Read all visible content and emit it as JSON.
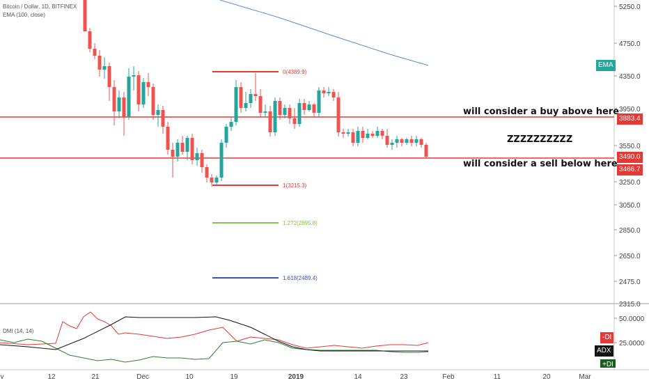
{
  "chart_data": {
    "type": "candlestick",
    "header": {
      "symbol": "Bitcoin / Dollar, 1D, BITFINEX",
      "indicator": "EMA (100, close)"
    },
    "y_ticks": [
      "5250.0",
      "4750.0",
      "4350.0",
      "3950.0",
      "3550.0",
      "3250.0",
      "3050.0",
      "2850.0",
      "2650.0",
      "2475.0",
      "2315.0"
    ],
    "x_ticks": [
      "v",
      "12",
      "21",
      "Dec",
      "10",
      "19",
      "2019",
      "14",
      "23",
      "Feb",
      "11",
      "20",
      "Mar"
    ],
    "ema_label": "EMA",
    "ema_line": [
      [
        316,
        0
      ],
      [
        400,
        25
      ],
      [
        480,
        52
      ],
      [
        560,
        78
      ],
      [
        615,
        94
      ]
    ],
    "hlines": [
      {
        "label": "3883.4",
        "y": 168,
        "color": "#e53935"
      },
      {
        "label": "3466.7",
        "y": 227,
        "color": "#e53935"
      }
    ],
    "price_badges": [
      {
        "label": "3883.4",
        "y": 170,
        "color": "#e53935"
      },
      {
        "label": "3490.0",
        "y": 225,
        "color": "#e53935"
      },
      {
        "label": "3466.7",
        "y": 243,
        "color": "#e53935"
      }
    ],
    "fib_levels": [
      {
        "label": "0(4389.9)",
        "y": 103,
        "color": "#e53935"
      },
      {
        "label": "1(3215.3)",
        "y": 266,
        "color": "#e53935"
      },
      {
        "label": "1.272(2895.8)",
        "y": 320,
        "color": "#8bc34a"
      },
      {
        "label": "1.618(2489.4)",
        "y": 399,
        "color": "#3f51b5"
      }
    ],
    "annotations": [
      {
        "text": "will consider a buy above here",
        "x": 665,
        "y": 153
      },
      {
        "text": "ZZZZZZZZZZ",
        "x": 728,
        "y": 193
      },
      {
        "text": "will consider a sell below here",
        "x": 665,
        "y": 228
      }
    ],
    "candles": [
      [
        122,
        0,
        45,
        0,
        45
      ],
      [
        129,
        45,
        70,
        40,
        75
      ],
      [
        136,
        70,
        80,
        62,
        85
      ],
      [
        143,
        80,
        100,
        72,
        110
      ],
      [
        150,
        100,
        95,
        82,
        113
      ],
      [
        157,
        95,
        125,
        90,
        145
      ],
      [
        164,
        125,
        160,
        115,
        180
      ],
      [
        171,
        160,
        140,
        130,
        170
      ],
      [
        178,
        140,
        168,
        132,
        195
      ],
      [
        185,
        168,
        110,
        98,
        172
      ],
      [
        192,
        110,
        108,
        95,
        130
      ],
      [
        199,
        108,
        150,
        102,
        160
      ],
      [
        206,
        150,
        118,
        112,
        155
      ],
      [
        213,
        118,
        125,
        105,
        138
      ],
      [
        220,
        125,
        165,
        120,
        172
      ],
      [
        227,
        165,
        158,
        150,
        182
      ],
      [
        234,
        158,
        182,
        152,
        192
      ],
      [
        241,
        182,
        215,
        175,
        222
      ],
      [
        248,
        215,
        225,
        205,
        255
      ],
      [
        255,
        225,
        205,
        200,
        232
      ],
      [
        262,
        205,
        218,
        195,
        222
      ],
      [
        269,
        218,
        198,
        195,
        230
      ],
      [
        276,
        198,
        230,
        192,
        236
      ],
      [
        283,
        230,
        220,
        212,
        238
      ],
      [
        290,
        220,
        240,
        215,
        248
      ],
      [
        297,
        240,
        255,
        236,
        262
      ],
      [
        304,
        255,
        262,
        250,
        268
      ],
      [
        311,
        262,
        255,
        252,
        266
      ],
      [
        318,
        255,
        205,
        200,
        260
      ],
      [
        325,
        205,
        182,
        178,
        212
      ],
      [
        332,
        182,
        175,
        168,
        188
      ],
      [
        339,
        175,
        125,
        115,
        180
      ],
      [
        346,
        125,
        155,
        118,
        162
      ],
      [
        353,
        155,
        148,
        132,
        160
      ],
      [
        360,
        148,
        135,
        128,
        155
      ],
      [
        367,
        135,
        138,
        105,
        145
      ],
      [
        374,
        138,
        162,
        128,
        168
      ],
      [
        381,
        162,
        160,
        150,
        168
      ],
      [
        388,
        160,
        190,
        152,
        196
      ],
      [
        395,
        190,
        145,
        140,
        195
      ],
      [
        402,
        145,
        165,
        140,
        172
      ],
      [
        409,
        165,
        155,
        150,
        170
      ],
      [
        416,
        155,
        170,
        150,
        178
      ],
      [
        423,
        170,
        178,
        155,
        185
      ],
      [
        430,
        178,
        148,
        142,
        182
      ],
      [
        437,
        148,
        158,
        142,
        165
      ],
      [
        444,
        158,
        150,
        145,
        160
      ],
      [
        451,
        150,
        162,
        148,
        168
      ],
      [
        458,
        162,
        130,
        125,
        168
      ],
      [
        465,
        130,
        134,
        125,
        140
      ],
      [
        472,
        134,
        132,
        125,
        138
      ],
      [
        479,
        132,
        140,
        128,
        145
      ],
      [
        486,
        140,
        190,
        132,
        196
      ],
      [
        493,
        190,
        192,
        185,
        198
      ],
      [
        500,
        192,
        190,
        185,
        196
      ],
      [
        507,
        190,
        205,
        185,
        210
      ],
      [
        514,
        205,
        188,
        182,
        210
      ],
      [
        521,
        188,
        198,
        182,
        205
      ],
      [
        528,
        198,
        192,
        185,
        200
      ],
      [
        535,
        192,
        195,
        188,
        198
      ],
      [
        542,
        195,
        188,
        182,
        198
      ],
      [
        549,
        188,
        195,
        185,
        200
      ],
      [
        556,
        195,
        208,
        185,
        212
      ],
      [
        563,
        208,
        205,
        200,
        215
      ],
      [
        570,
        205,
        200,
        195,
        212
      ],
      [
        577,
        200,
        205,
        198,
        210
      ],
      [
        584,
        205,
        200,
        198,
        208
      ],
      [
        591,
        200,
        205,
        195,
        210
      ],
      [
        598,
        205,
        200,
        195,
        210
      ],
      [
        605,
        200,
        208,
        198,
        212
      ],
      [
        612,
        208,
        225,
        205,
        228
      ]
    ],
    "dmi": {
      "label": "DMI (14, 14)",
      "y_ticks": [
        "50.0000",
        "25.0000"
      ],
      "badges": [
        "-DI",
        "ADX",
        "+DI"
      ],
      "minus_di": [
        [
          0,
          492
        ],
        [
          40,
          495
        ],
        [
          80,
          493
        ],
        [
          90,
          462
        ],
        [
          100,
          468
        ],
        [
          110,
          472
        ],
        [
          120,
          455
        ],
        [
          130,
          448
        ],
        [
          140,
          458
        ],
        [
          150,
          462
        ],
        [
          160,
          468
        ],
        [
          170,
          480
        ],
        [
          180,
          478
        ],
        [
          200,
          480
        ],
        [
          220,
          483
        ],
        [
          240,
          486
        ],
        [
          260,
          484
        ],
        [
          280,
          480
        ],
        [
          300,
          474
        ],
        [
          320,
          470
        ],
        [
          340,
          490
        ],
        [
          360,
          484
        ],
        [
          380,
          486
        ],
        [
          400,
          488
        ],
        [
          420,
          495
        ],
        [
          440,
          500
        ],
        [
          460,
          498
        ],
        [
          480,
          496
        ],
        [
          500,
          498
        ],
        [
          520,
          500
        ],
        [
          540,
          497
        ],
        [
          560,
          495
        ],
        [
          580,
          495
        ],
        [
          600,
          496
        ],
        [
          615,
          492
        ]
      ],
      "plus_di": [
        [
          0,
          488
        ],
        [
          20,
          492
        ],
        [
          40,
          487
        ],
        [
          60,
          490
        ],
        [
          80,
          500
        ],
        [
          100,
          510
        ],
        [
          120,
          514
        ],
        [
          140,
          518
        ],
        [
          160,
          516
        ],
        [
          180,
          520
        ],
        [
          200,
          517
        ],
        [
          220,
          512
        ],
        [
          240,
          514
        ],
        [
          260,
          514
        ],
        [
          280,
          516
        ],
        [
          300,
          515
        ],
        [
          320,
          492
        ],
        [
          340,
          490
        ],
        [
          360,
          494
        ],
        [
          380,
          488
        ],
        [
          400,
          492
        ],
        [
          420,
          500
        ],
        [
          440,
          502
        ],
        [
          460,
          503
        ],
        [
          480,
          503
        ],
        [
          500,
          503
        ],
        [
          520,
          503
        ],
        [
          540,
          503
        ],
        [
          560,
          505
        ],
        [
          580,
          506
        ],
        [
          600,
          506
        ],
        [
          615,
          505
        ]
      ],
      "adx": [
        [
          0,
          495
        ],
        [
          40,
          498
        ],
        [
          80,
          502
        ],
        [
          120,
          486
        ],
        [
          160,
          466
        ],
        [
          180,
          455
        ],
        [
          200,
          456
        ],
        [
          240,
          456
        ],
        [
          280,
          456
        ],
        [
          310,
          455
        ],
        [
          330,
          460
        ],
        [
          360,
          470
        ],
        [
          380,
          480
        ],
        [
          400,
          490
        ],
        [
          420,
          498
        ],
        [
          440,
          502
        ],
        [
          460,
          504
        ],
        [
          480,
          504
        ],
        [
          500,
          504
        ],
        [
          540,
          504
        ],
        [
          580,
          504
        ],
        [
          615,
          504
        ]
      ]
    }
  }
}
